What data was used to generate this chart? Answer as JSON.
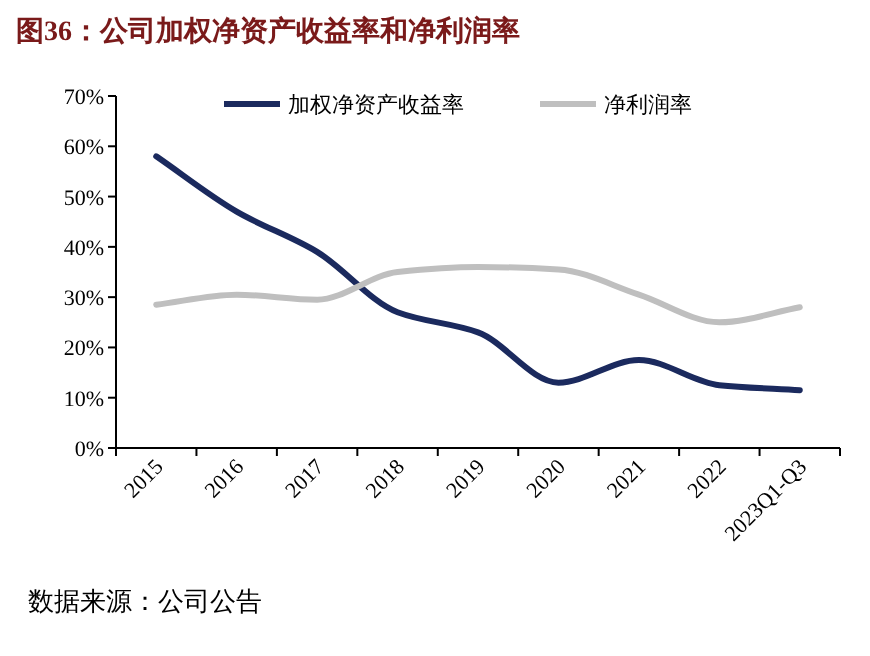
{
  "chart_data": {
    "type": "line",
    "title": "图36：公司加权净资产收益率和净利润率",
    "categories": [
      "2015",
      "2016",
      "2017",
      "2018",
      "2019",
      "2020",
      "2021",
      "2022",
      "2023Q1-Q3"
    ],
    "series": [
      {
        "name": "加权净资产收益率",
        "color": "#1b2a5e",
        "values": [
          58,
          47,
          39,
          27,
          23,
          13,
          17.5,
          12.5,
          11.5
        ]
      },
      {
        "name": "净利润率",
        "color": "#bfbfbf",
        "values": [
          28.5,
          30.5,
          29.5,
          35,
          36,
          35.5,
          30.5,
          25,
          28
        ]
      }
    ],
    "ylim": [
      0,
      70
    ],
    "yticks": [
      {
        "value": 0,
        "label": "0%"
      },
      {
        "value": 10,
        "label": "10%"
      },
      {
        "value": 20,
        "label": "20%"
      },
      {
        "value": 30,
        "label": "30%"
      },
      {
        "value": 40,
        "label": "40%"
      },
      {
        "value": 50,
        "label": "50%"
      },
      {
        "value": 60,
        "label": "60%"
      },
      {
        "value": 70,
        "label": "70%"
      }
    ],
    "legend": "top",
    "grid": false,
    "marker": "none",
    "annotations": [
      "数据来源：公司公告"
    ]
  }
}
